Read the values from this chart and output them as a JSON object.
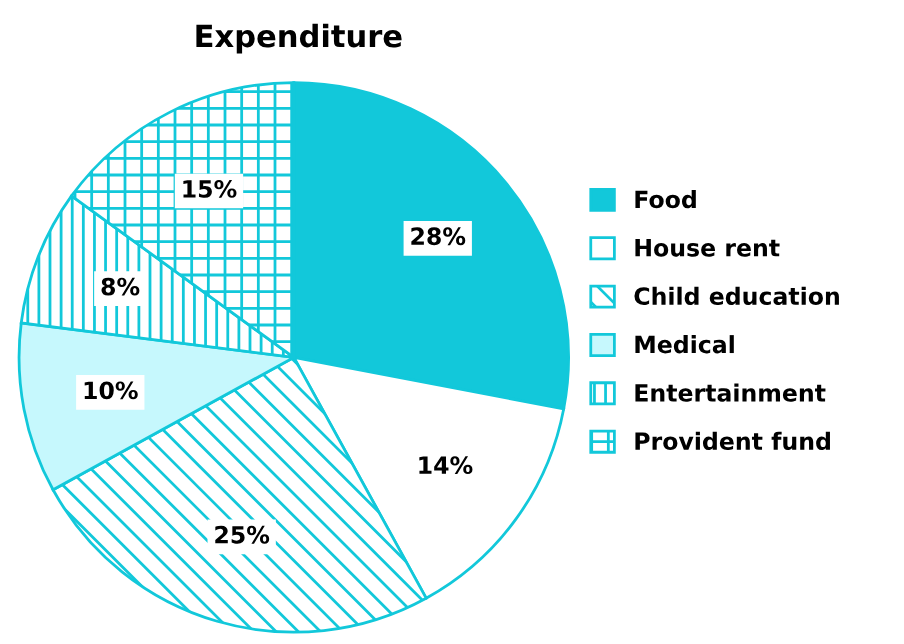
{
  "chart_data": {
    "type": "pie",
    "title": "Expenditure",
    "categories": [
      "Food",
      "House rent",
      "Child education",
      "Medical",
      "Entertainment",
      "Provident fund"
    ],
    "values": [
      28,
      14,
      25,
      10,
      8,
      15
    ],
    "colors": [
      "#12c8da",
      "#ffffff",
      "#12c8da",
      "#c6f8fd",
      "#12c8da",
      "#12c8da"
    ],
    "value_labels": [
      "28%",
      "14%",
      "25%",
      "10%",
      "8%",
      "15%"
    ],
    "legend": "right"
  }
}
